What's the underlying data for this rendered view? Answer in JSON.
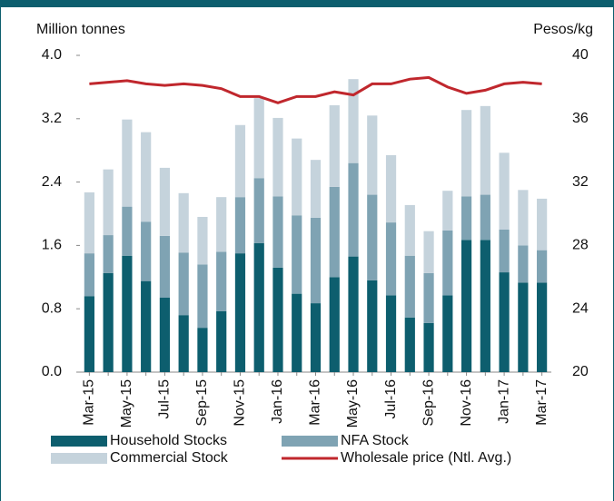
{
  "chart_data": {
    "type": "bar",
    "y_label": "Million tonnes",
    "y2_label": "Pesos/kg",
    "categories": [
      "Mar-15",
      null,
      "May-15",
      null,
      "Jul-15",
      null,
      "Sep-15",
      null,
      "Nov-15",
      null,
      "Jan-16",
      null,
      "Mar-16",
      null,
      "May-16",
      null,
      "Jul-16",
      null,
      "Sep-16",
      null,
      "Nov-16",
      null,
      "Jan-17",
      null,
      "Mar-17"
    ],
    "stacked": true,
    "series": [
      {
        "name": "Household Stocks",
        "color": "#0d5e6e",
        "values": [
          0.96,
          1.25,
          1.47,
          1.15,
          0.94,
          0.72,
          0.56,
          0.77,
          1.5,
          1.63,
          1.32,
          0.99,
          0.87,
          1.2,
          1.46,
          1.16,
          0.97,
          0.69,
          0.62,
          0.97,
          1.67,
          1.67,
          1.26,
          1.13,
          1.13
        ]
      },
      {
        "name": "NFA Stock",
        "color": "#7fa3b3",
        "values": [
          0.54,
          0.48,
          0.62,
          0.75,
          0.78,
          0.79,
          0.8,
          0.75,
          0.71,
          0.82,
          0.9,
          0.99,
          1.08,
          1.14,
          1.18,
          1.08,
          0.92,
          0.78,
          0.63,
          0.82,
          0.55,
          0.57,
          0.54,
          0.47,
          0.41
        ]
      },
      {
        "name": "Commercial Stock",
        "color": "#c5d3dc",
        "values": [
          0.77,
          0.83,
          1.1,
          1.13,
          0.86,
          0.75,
          0.6,
          0.69,
          0.91,
          1.01,
          0.99,
          0.97,
          0.73,
          1.03,
          1.06,
          1.0,
          0.85,
          0.64,
          0.53,
          0.5,
          1.09,
          1.12,
          0.97,
          0.7,
          0.65
        ]
      },
      {
        "name": "Wholesale price (Ntl. Avg.)",
        "color": "#c0272d",
        "type": "line",
        "axis": "y2",
        "values": [
          38.2,
          38.3,
          38.4,
          38.2,
          38.1,
          38.2,
          38.1,
          37.9,
          37.4,
          37.4,
          37.0,
          37.4,
          37.4,
          37.7,
          37.5,
          38.2,
          38.2,
          38.5,
          38.6,
          38.0,
          37.6,
          37.8,
          38.2,
          38.3,
          38.2
        ]
      }
    ],
    "ylim": [
      0,
      4
    ],
    "yticks": [
      {
        "value": 0,
        "label": "0.0"
      },
      0.8,
      1.6,
      2.4,
      3.2,
      {
        "value": 4,
        "label": "4.0"
      }
    ],
    "y2lim": [
      20,
      40
    ],
    "y2ticks": [
      20,
      24,
      28,
      32,
      36,
      40
    ],
    "grid": false
  }
}
